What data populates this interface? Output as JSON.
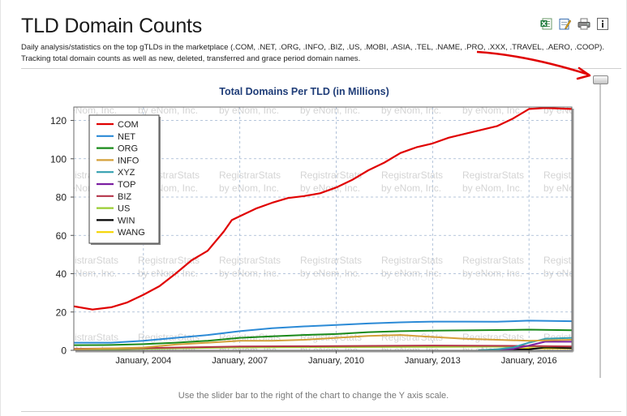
{
  "header": {
    "title": "TLD Domain Counts",
    "description": "Daily analysis/statistics on the top gTLDs in the marketplace (.COM, .NET, .ORG, .INFO, .BIZ, .US, .MOBI, .ASIA, .TEL, .NAME, .PRO, .XXX, .TRAVEL, .AERO, .COOP). Tracking total domain counts as well as new, deleted, transferred and grace period domain names."
  },
  "toolbar": {
    "items": [
      {
        "name": "excel-export-icon",
        "color": "#1d7a3a"
      },
      {
        "name": "notes-edit-icon",
        "color": "#3a6fb0"
      },
      {
        "name": "print-icon",
        "color": "#555555"
      },
      {
        "name": "info-icon",
        "color": "#444444"
      }
    ]
  },
  "watermark": {
    "brand": "RegistrarStats",
    "byline": "by eNom, Inc."
  },
  "chart_data": {
    "type": "line",
    "title": "Total Domains Per TLD (in Millions)",
    "xlabel": "",
    "ylabel": "",
    "xlim": [
      "2001-11",
      "2017-05"
    ],
    "ylim": [
      0,
      127
    ],
    "y_ticks": [
      0,
      20,
      40,
      60,
      80,
      100,
      120
    ],
    "x_ticks": [
      {
        "value": "2004-01",
        "label": "January, 2004"
      },
      {
        "value": "2007-01",
        "label": "January, 2007"
      },
      {
        "value": "2010-01",
        "label": "January, 2010"
      },
      {
        "value": "2013-01",
        "label": "January, 2013"
      },
      {
        "value": "2016-01",
        "label": "January, 2016"
      }
    ],
    "grid": true,
    "legend_position": "top-left",
    "series": [
      {
        "name": "COM",
        "color": "#e00000",
        "points": [
          [
            "2001-11",
            23
          ],
          [
            "2002-06",
            21.3
          ],
          [
            "2003-01",
            22.5
          ],
          [
            "2003-07",
            25
          ],
          [
            "2004-01",
            29
          ],
          [
            "2004-07",
            33.5
          ],
          [
            "2005-01",
            40
          ],
          [
            "2005-07",
            47
          ],
          [
            "2006-01",
            52
          ],
          [
            "2006-07",
            62
          ],
          [
            "2006-10",
            68
          ],
          [
            "2007-01",
            70
          ],
          [
            "2007-07",
            74
          ],
          [
            "2008-01",
            77
          ],
          [
            "2008-07",
            79.5
          ],
          [
            "2009-01",
            80.5
          ],
          [
            "2009-07",
            82
          ],
          [
            "2010-01",
            85
          ],
          [
            "2010-07",
            89
          ],
          [
            "2011-01",
            94
          ],
          [
            "2011-07",
            98
          ],
          [
            "2012-01",
            103
          ],
          [
            "2012-07",
            106
          ],
          [
            "2013-01",
            108
          ],
          [
            "2013-07",
            111
          ],
          [
            "2014-01",
            113
          ],
          [
            "2014-07",
            115
          ],
          [
            "2015-01",
            117
          ],
          [
            "2015-07",
            121
          ],
          [
            "2016-01",
            126
          ],
          [
            "2016-07",
            126.5
          ],
          [
            "2017-05",
            126
          ]
        ]
      },
      {
        "name": "NET",
        "color": "#2b8ad6",
        "points": [
          [
            "2001-11",
            4
          ],
          [
            "2003-01",
            4
          ],
          [
            "2004-01",
            5
          ],
          [
            "2005-01",
            6.5
          ],
          [
            "2006-01",
            8
          ],
          [
            "2007-01",
            10
          ],
          [
            "2008-01",
            11.5
          ],
          [
            "2009-01",
            12.5
          ],
          [
            "2010-01",
            13.2
          ],
          [
            "2011-01",
            14
          ],
          [
            "2012-01",
            14.6
          ],
          [
            "2013-01",
            15
          ],
          [
            "2014-01",
            15
          ],
          [
            "2015-01",
            14.9
          ],
          [
            "2016-01",
            15.5
          ],
          [
            "2017-05",
            15.2
          ]
        ]
      },
      {
        "name": "ORG",
        "color": "#1a8a1a",
        "points": [
          [
            "2001-11",
            2.7
          ],
          [
            "2003-01",
            2.8
          ],
          [
            "2004-01",
            3.2
          ],
          [
            "2005-01",
            4
          ],
          [
            "2006-01",
            5
          ],
          [
            "2007-01",
            6.5
          ],
          [
            "2008-01",
            7.3
          ],
          [
            "2009-01",
            8
          ],
          [
            "2010-01",
            8.5
          ],
          [
            "2011-01",
            9.5
          ],
          [
            "2012-01",
            10
          ],
          [
            "2013-01",
            10.3
          ],
          [
            "2014-01",
            10.4
          ],
          [
            "2015-01",
            10.6
          ],
          [
            "2016-01",
            10.8
          ],
          [
            "2017-05",
            10.5
          ]
        ]
      },
      {
        "name": "INFO",
        "color": "#d4a03a",
        "points": [
          [
            "2001-11",
            0.5
          ],
          [
            "2003-01",
            1
          ],
          [
            "2004-01",
            1.5
          ],
          [
            "2005-01",
            3
          ],
          [
            "2006-01",
            4
          ],
          [
            "2007-01",
            5
          ],
          [
            "2008-01",
            5
          ],
          [
            "2009-01",
            5.5
          ],
          [
            "2010-01",
            6.5
          ],
          [
            "2011-01",
            7.5
          ],
          [
            "2012-01",
            8
          ],
          [
            "2013-01",
            7
          ],
          [
            "2014-01",
            6
          ],
          [
            "2015-01",
            5.5
          ],
          [
            "2016-01",
            5
          ],
          [
            "2017-05",
            5.5
          ]
        ]
      },
      {
        "name": "XYZ",
        "color": "#33a0b0",
        "points": [
          [
            "2014-06",
            0
          ],
          [
            "2015-01",
            0.5
          ],
          [
            "2015-07",
            1.5
          ],
          [
            "2016-01",
            4
          ],
          [
            "2016-07",
            6
          ],
          [
            "2017-05",
            6.5
          ]
        ]
      },
      {
        "name": "TOP",
        "color": "#7b1fa2",
        "points": [
          [
            "2014-06",
            0
          ],
          [
            "2015-07",
            0.7
          ],
          [
            "2016-01",
            2.5
          ],
          [
            "2016-07",
            4.5
          ],
          [
            "2017-05",
            4.5
          ]
        ]
      },
      {
        "name": "BIZ",
        "color": "#b5344a",
        "points": [
          [
            "2001-11",
            0.8
          ],
          [
            "2004-01",
            1.2
          ],
          [
            "2007-01",
            2
          ],
          [
            "2010-01",
            2.2
          ],
          [
            "2013-01",
            2.5
          ],
          [
            "2016-01",
            2.3
          ],
          [
            "2017-05",
            2
          ]
        ]
      },
      {
        "name": "US",
        "color": "#9acd32",
        "points": [
          [
            "2001-11",
            0.2
          ],
          [
            "2004-01",
            0.8
          ],
          [
            "2007-01",
            1.5
          ],
          [
            "2010-01",
            1.7
          ],
          [
            "2013-01",
            1.8
          ],
          [
            "2016-01",
            2
          ],
          [
            "2017-05",
            2
          ]
        ]
      },
      {
        "name": "WIN",
        "color": "#000000",
        "points": [
          [
            "2014-06",
            0
          ],
          [
            "2016-01",
            0.5
          ],
          [
            "2016-07",
            1.5
          ],
          [
            "2017-05",
            1.2
          ]
        ]
      },
      {
        "name": "WANG",
        "color": "#f5d400",
        "points": [
          [
            "2014-06",
            0
          ],
          [
            "2015-01",
            0.5
          ],
          [
            "2016-01",
            1
          ],
          [
            "2017-05",
            1
          ]
        ]
      }
    ]
  },
  "footer": {
    "hint": "Use the slider bar to the right of the chart to change the Y axis scale."
  }
}
